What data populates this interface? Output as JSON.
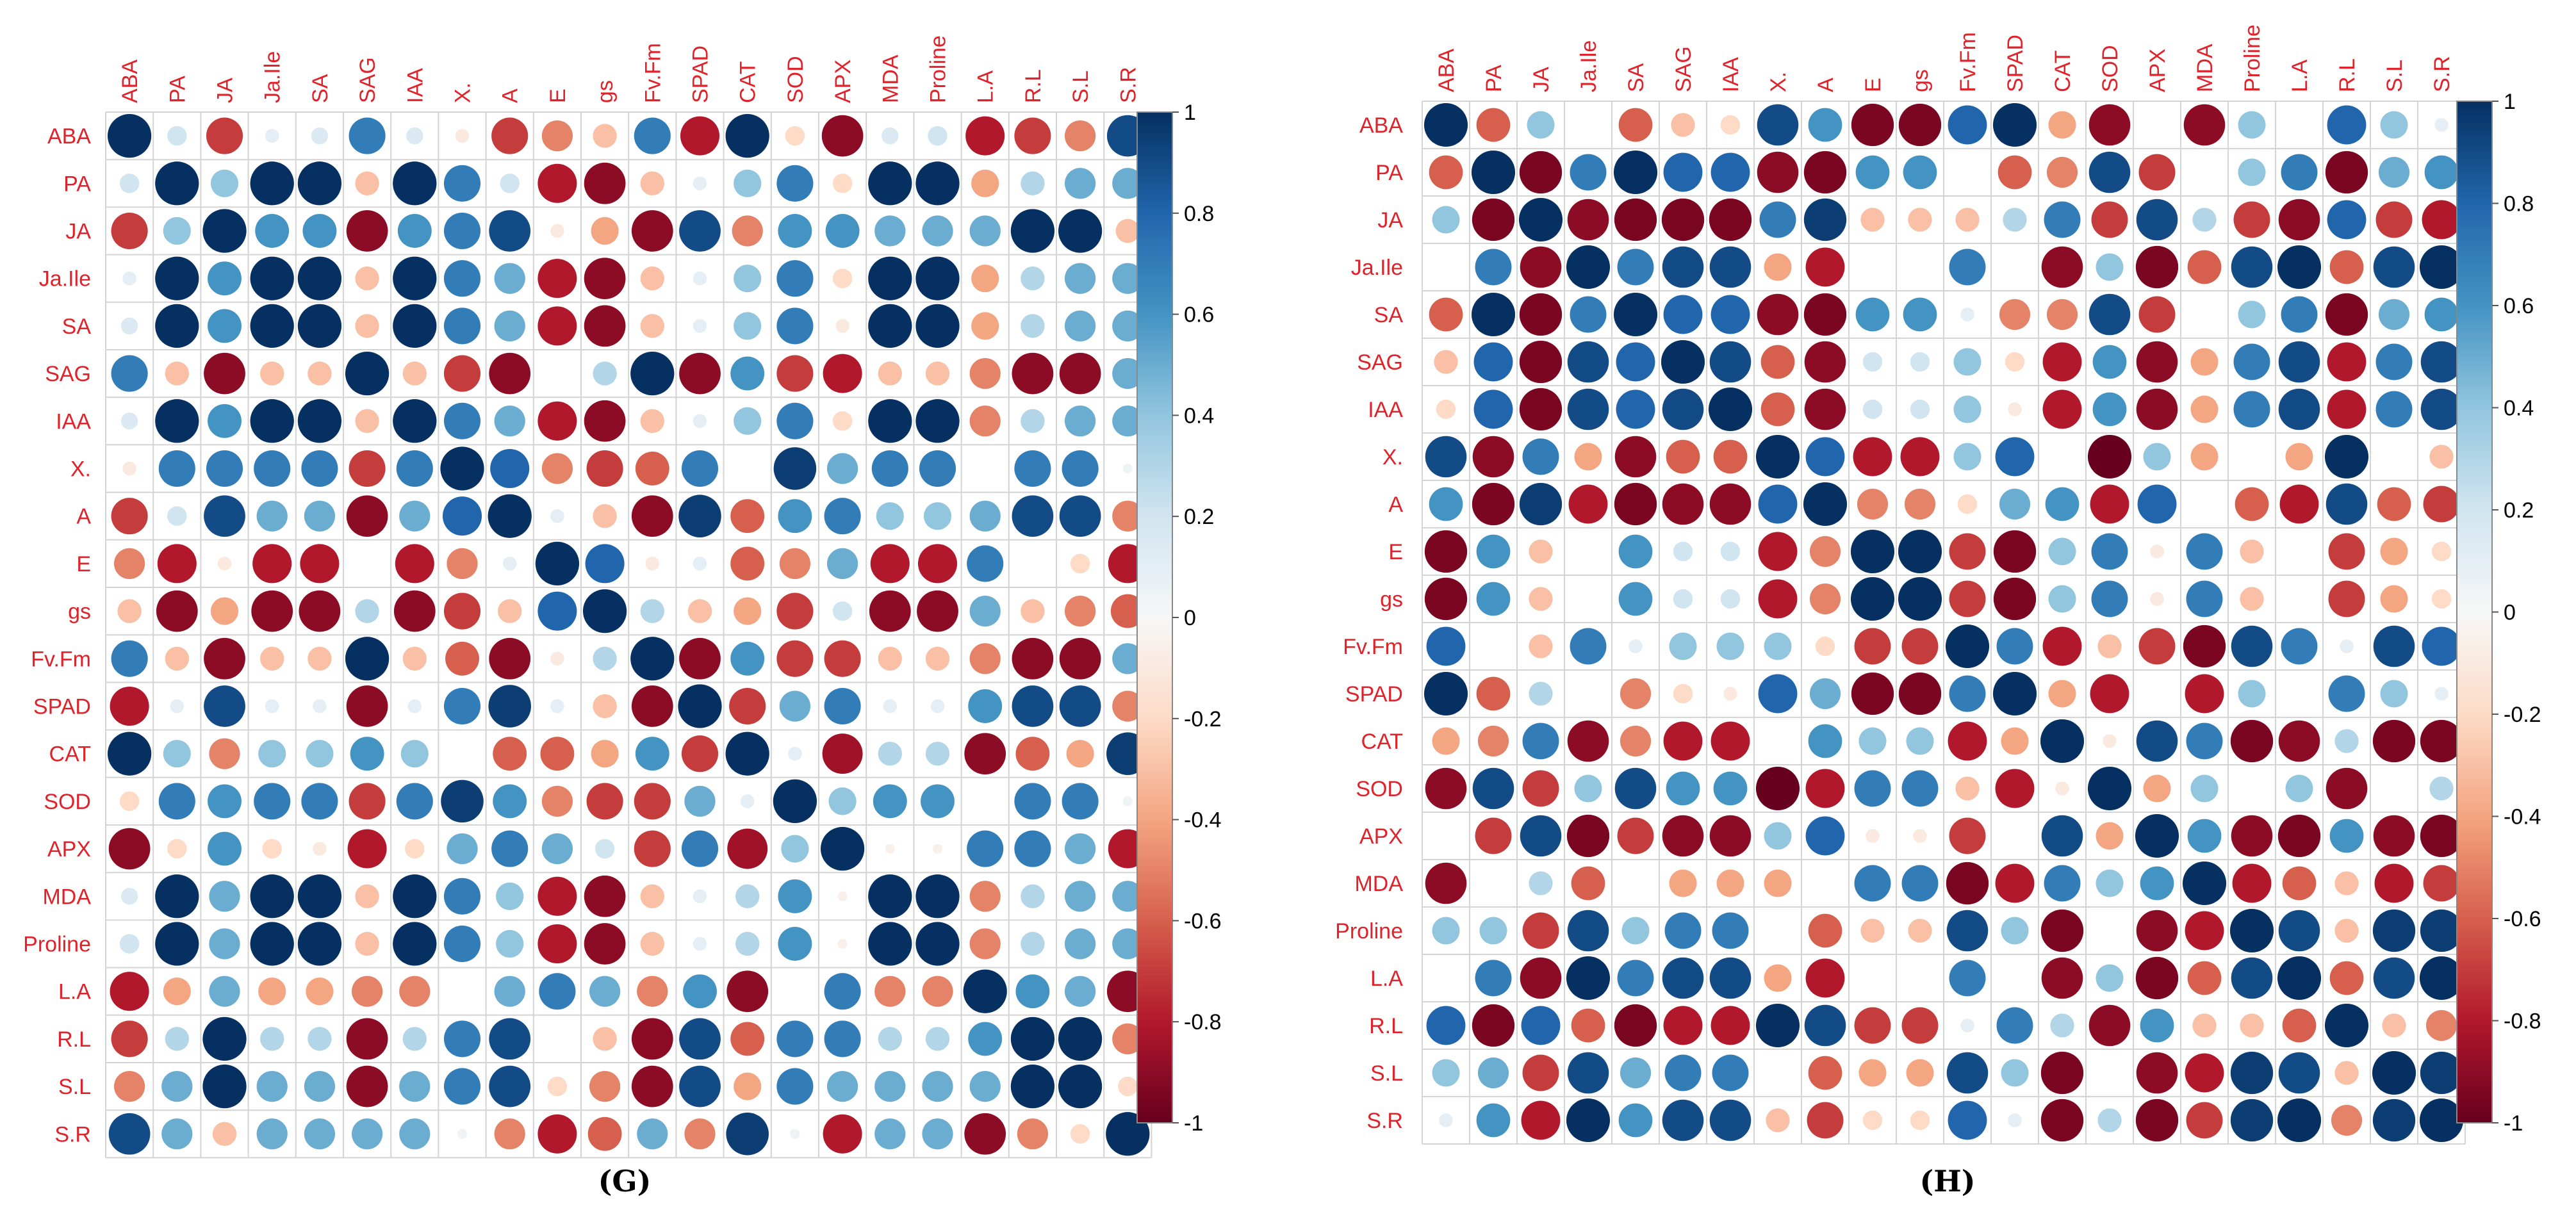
{
  "chart_data": [
    {
      "type": "heatmap",
      "panel_label": "(G)",
      "variables": [
        "ABA",
        "PA",
        "JA",
        "Ja.Ile",
        "SA",
        "SAG",
        "IAA",
        "X.",
        "A",
        "E",
        "gs",
        "Fv.Fm",
        "SPAD",
        "CAT",
        "SOD",
        "APX",
        "MDA",
        "Proline",
        "L.A",
        "R.L",
        "S.L",
        "S.R"
      ],
      "color_range": [
        -1,
        1
      ],
      "colorbar_ticks": [
        "1",
        "0.8",
        "0.6",
        "0.4",
        "0.2",
        "0",
        "-0.2",
        "-0.4",
        "-0.6",
        "-0.8",
        "-1"
      ],
      "matrix": [
        [
          1,
          0.2,
          -0.7,
          0.1,
          0.15,
          0.7,
          0.15,
          -0.1,
          -0.7,
          -0.5,
          -0.3,
          0.7,
          -0.8,
          1,
          -0.2,
          -0.9,
          0.15,
          0.2,
          -0.8,
          -0.7,
          -0.5,
          0.9
        ],
        [
          0.2,
          1,
          0.4,
          1,
          1,
          -0.3,
          1,
          0.7,
          0.2,
          -0.8,
          -0.9,
          -0.3,
          0.1,
          0.4,
          0.7,
          -0.2,
          1,
          1,
          -0.4,
          0.3,
          0.5,
          0.5
        ],
        [
          -0.7,
          0.4,
          1,
          0.6,
          0.6,
          -0.9,
          0.6,
          0.7,
          0.9,
          -0.1,
          -0.4,
          -0.9,
          0.9,
          -0.5,
          0.6,
          0.6,
          0.5,
          0.5,
          0.5,
          1,
          1,
          -0.3
        ],
        [
          0.1,
          1,
          0.6,
          1,
          1,
          -0.3,
          1,
          0.7,
          0.5,
          -0.8,
          -0.9,
          -0.3,
          0.1,
          0.4,
          0.7,
          -0.2,
          1,
          1,
          -0.4,
          0.3,
          0.5,
          0.5
        ],
        [
          0.15,
          1,
          0.6,
          1,
          1,
          -0.3,
          1,
          0.7,
          0.5,
          -0.8,
          -0.9,
          -0.3,
          0.1,
          0.4,
          0.7,
          -0.1,
          1,
          1,
          -0.4,
          0.3,
          0.5,
          0.5
        ],
        [
          0.7,
          -0.3,
          -0.9,
          -0.3,
          -0.3,
          1,
          -0.3,
          -0.7,
          -0.9,
          0,
          0.3,
          1,
          -0.9,
          0.6,
          -0.7,
          -0.8,
          -0.3,
          -0.3,
          -0.5,
          -0.9,
          -0.9,
          0.5
        ],
        [
          0.15,
          1,
          0.6,
          1,
          1,
          -0.3,
          1,
          0.7,
          0.5,
          -0.8,
          -0.9,
          -0.3,
          0.1,
          0.4,
          0.7,
          -0.2,
          1,
          1,
          -0.5,
          0.3,
          0.5,
          0.5
        ],
        [
          -0.1,
          0.7,
          0.7,
          0.7,
          0.7,
          -0.7,
          0.7,
          1,
          0.8,
          -0.5,
          -0.7,
          -0.6,
          0.7,
          0,
          0.95,
          0.5,
          0.7,
          0.7,
          0,
          0.7,
          0.7,
          0.05
        ],
        [
          -0.7,
          0.2,
          0.9,
          0.5,
          0.5,
          -0.9,
          0.5,
          0.8,
          1,
          0.1,
          -0.3,
          -0.9,
          0.95,
          -0.6,
          0.6,
          0.7,
          0.4,
          0.4,
          0.5,
          0.9,
          0.9,
          -0.5
        ],
        [
          -0.5,
          -0.8,
          -0.1,
          -0.8,
          -0.8,
          0,
          -0.8,
          -0.5,
          0.1,
          1,
          0.8,
          -0.1,
          0.1,
          -0.6,
          -0.5,
          0.5,
          -0.8,
          -0.8,
          0.7,
          0,
          -0.2,
          -0.8
        ],
        [
          -0.3,
          -0.9,
          -0.4,
          -0.9,
          -0.9,
          0.3,
          -0.9,
          -0.7,
          -0.3,
          0.8,
          1,
          0.3,
          -0.3,
          -0.4,
          -0.7,
          0.2,
          -0.9,
          -0.9,
          0.5,
          -0.3,
          -0.5,
          -0.6
        ],
        [
          0.7,
          -0.3,
          -0.9,
          -0.3,
          -0.3,
          1,
          -0.3,
          -0.6,
          -0.9,
          -0.1,
          0.3,
          1,
          -0.9,
          0.6,
          -0.7,
          -0.7,
          -0.3,
          -0.3,
          -0.5,
          -0.9,
          -0.9,
          0.5
        ],
        [
          -0.8,
          0.1,
          0.9,
          0.1,
          0.1,
          -0.9,
          0.1,
          0.7,
          0.95,
          0.1,
          -0.3,
          -0.9,
          1,
          -0.7,
          0.5,
          0.7,
          0.1,
          0.1,
          0.6,
          0.9,
          0.9,
          -0.5
        ],
        [
          1,
          0.4,
          -0.5,
          0.4,
          0.4,
          0.6,
          0.4,
          0,
          -0.6,
          -0.6,
          -0.4,
          0.6,
          -0.7,
          1,
          0.1,
          -0.85,
          0.3,
          0.3,
          -0.9,
          -0.6,
          -0.4,
          0.95
        ],
        [
          -0.2,
          0.7,
          0.6,
          0.7,
          0.7,
          -0.7,
          0.7,
          0.95,
          0.6,
          -0.5,
          -0.7,
          -0.7,
          0.5,
          0.1,
          1,
          0.4,
          0.6,
          0.6,
          0,
          0.7,
          0.7,
          0.05
        ],
        [
          -0.9,
          -0.2,
          0.6,
          -0.2,
          -0.1,
          -0.8,
          -0.2,
          0.5,
          0.7,
          0.5,
          0.2,
          -0.7,
          0.7,
          -0.85,
          0.4,
          1,
          -0.05,
          -0.05,
          0.7,
          0.7,
          0.5,
          -0.8
        ],
        [
          0.15,
          1,
          0.5,
          1,
          1,
          -0.3,
          1,
          0.7,
          0.4,
          -0.8,
          -0.9,
          -0.3,
          0.1,
          0.3,
          0.6,
          -0.05,
          1,
          1,
          -0.5,
          0.3,
          0.5,
          0.5
        ],
        [
          0.2,
          1,
          0.5,
          1,
          1,
          -0.3,
          1,
          0.7,
          0.4,
          -0.8,
          -0.9,
          -0.3,
          0.1,
          0.3,
          0.6,
          -0.05,
          1,
          1,
          -0.5,
          0.3,
          0.5,
          0.5
        ],
        [
          -0.8,
          -0.4,
          0.5,
          -0.4,
          -0.4,
          -0.5,
          -0.5,
          0,
          0.5,
          0.7,
          0.5,
          -0.5,
          0.6,
          -0.9,
          0,
          0.7,
          -0.5,
          -0.5,
          1,
          0.6,
          0.5,
          -0.9
        ],
        [
          -0.7,
          0.3,
          1,
          0.3,
          0.3,
          -0.9,
          0.3,
          0.7,
          0.9,
          0,
          -0.3,
          -0.9,
          0.9,
          -0.6,
          0.7,
          0.7,
          0.3,
          0.3,
          0.6,
          1,
          1,
          -0.5
        ],
        [
          -0.5,
          0.5,
          1,
          0.5,
          0.5,
          -0.9,
          0.5,
          0.7,
          0.9,
          -0.2,
          -0.5,
          -0.9,
          0.9,
          -0.4,
          0.7,
          0.5,
          0.5,
          0.5,
          0.5,
          1,
          1,
          -0.2
        ],
        [
          0.9,
          0.5,
          -0.3,
          0.5,
          0.5,
          0.5,
          0.5,
          0.05,
          -0.5,
          -0.8,
          -0.6,
          0.5,
          -0.5,
          0.95,
          0.05,
          -0.8,
          0.5,
          0.5,
          -0.9,
          -0.5,
          -0.2,
          1
        ]
      ]
    },
    {
      "type": "heatmap",
      "panel_label": "(H)",
      "variables": [
        "ABA",
        "PA",
        "JA",
        "Ja.Ile",
        "SA",
        "SAG",
        "IAA",
        "X.",
        "A",
        "E",
        "gs",
        "Fv.Fm",
        "SPAD",
        "CAT",
        "SOD",
        "APX",
        "MDA",
        "Proline",
        "L.A",
        "R.L",
        "S.L",
        "S.R"
      ],
      "color_range": [
        -1,
        1
      ],
      "colorbar_ticks": [
        "1",
        "0.8",
        "0.6",
        "0.4",
        "0.2",
        "0",
        "-0.2",
        "-0.4",
        "-0.6",
        "-0.8",
        "-1"
      ],
      "matrix": [
        [
          1,
          -0.6,
          0.4,
          0,
          -0.6,
          -0.3,
          -0.2,
          0.9,
          0.6,
          -0.95,
          -0.95,
          0.8,
          1,
          -0.4,
          -0.9,
          0,
          -0.9,
          0.4,
          0,
          0.8,
          0.4,
          0.1
        ],
        [
          -0.6,
          1,
          -0.95,
          0.7,
          1,
          0.8,
          0.8,
          -0.9,
          -0.95,
          0.6,
          0.6,
          0,
          -0.6,
          -0.5,
          0.9,
          -0.7,
          0,
          0.4,
          0.7,
          -0.95,
          0.5,
          0.6
        ],
        [
          0.4,
          -0.95,
          1,
          -0.9,
          -0.95,
          -0.95,
          -0.95,
          0.7,
          0.95,
          -0.3,
          -0.3,
          -0.3,
          0.3,
          0.7,
          -0.7,
          0.9,
          0.3,
          -0.7,
          -0.9,
          0.8,
          -0.7,
          -0.8
        ],
        [
          0,
          0.7,
          -0.9,
          1,
          0.7,
          0.9,
          0.9,
          -0.4,
          -0.8,
          0,
          0,
          0.7,
          0,
          -0.9,
          0.4,
          -0.95,
          -0.6,
          0.9,
          1,
          -0.6,
          0.9,
          1
        ],
        [
          -0.6,
          1,
          -0.95,
          0.7,
          1,
          0.8,
          0.8,
          -0.9,
          -0.95,
          0.6,
          0.6,
          0.1,
          -0.5,
          -0.5,
          0.9,
          -0.7,
          0,
          0.4,
          0.7,
          -0.95,
          0.5,
          0.6
        ],
        [
          -0.3,
          0.8,
          -0.95,
          0.9,
          0.8,
          1,
          0.9,
          -0.6,
          -0.9,
          0.2,
          0.2,
          0.4,
          -0.2,
          -0.8,
          0.6,
          -0.9,
          -0.4,
          0.7,
          0.9,
          -0.8,
          0.7,
          0.9
        ],
        [
          -0.2,
          0.8,
          -0.95,
          0.9,
          0.8,
          0.9,
          1,
          -0.6,
          -0.9,
          0.2,
          0.2,
          0.4,
          -0.1,
          -0.8,
          0.6,
          -0.9,
          -0.4,
          0.7,
          0.9,
          -0.8,
          0.7,
          0.9
        ],
        [
          0.9,
          -0.9,
          0.7,
          -0.4,
          -0.9,
          -0.6,
          -0.6,
          1,
          0.8,
          -0.8,
          -0.8,
          0.4,
          0.8,
          0,
          -1,
          0.4,
          -0.4,
          0,
          -0.4,
          1,
          0,
          -0.3
        ],
        [
          0.6,
          -0.95,
          0.95,
          -0.8,
          -0.95,
          -0.9,
          -0.9,
          0.8,
          1,
          -0.5,
          -0.5,
          -0.2,
          0.5,
          0.6,
          -0.8,
          0.8,
          0,
          -0.6,
          -0.8,
          0.9,
          -0.6,
          -0.7
        ],
        [
          -0.95,
          0.6,
          -0.3,
          0,
          0.6,
          0.2,
          0.2,
          -0.8,
          -0.5,
          1,
          1,
          -0.7,
          -0.95,
          0.4,
          0.7,
          -0.1,
          0.7,
          -0.3,
          0,
          -0.7,
          -0.4,
          -0.2
        ],
        [
          -0.95,
          0.6,
          -0.3,
          0,
          0.6,
          0.2,
          0.2,
          -0.8,
          -0.5,
          1,
          1,
          -0.7,
          -0.95,
          0.4,
          0.7,
          -0.1,
          0.7,
          -0.3,
          0,
          -0.7,
          -0.4,
          -0.2
        ],
        [
          0.8,
          0,
          -0.3,
          0.7,
          0.1,
          0.4,
          0.4,
          0.4,
          -0.2,
          -0.7,
          -0.7,
          1,
          0.7,
          -0.8,
          -0.3,
          -0.7,
          -0.95,
          0.9,
          0.7,
          0.1,
          0.9,
          0.8
        ],
        [
          1,
          -0.6,
          0.3,
          0,
          -0.5,
          -0.2,
          -0.1,
          0.8,
          0.5,
          -0.95,
          -0.95,
          0.7,
          1,
          -0.4,
          -0.8,
          0,
          -0.8,
          0.4,
          0,
          0.7,
          0.4,
          0.1
        ],
        [
          -0.4,
          -0.5,
          0.7,
          -0.9,
          -0.5,
          -0.8,
          -0.8,
          0,
          0.6,
          0.4,
          0.4,
          -0.8,
          -0.4,
          1,
          -0.1,
          0.9,
          0.7,
          -0.95,
          -0.9,
          0.3,
          -0.95,
          -0.95
        ],
        [
          -0.9,
          0.9,
          -0.7,
          0.4,
          0.9,
          0.6,
          0.6,
          -1,
          -0.8,
          0.7,
          0.7,
          -0.3,
          -0.8,
          -0.1,
          1,
          -0.4,
          0.4,
          0,
          0.4,
          -0.9,
          0,
          0.3
        ],
        [
          0,
          -0.7,
          0.9,
          -0.95,
          -0.7,
          -0.9,
          -0.9,
          0.4,
          0.8,
          -0.1,
          -0.1,
          -0.7,
          0,
          0.9,
          -0.4,
          1,
          0.6,
          -0.9,
          -0.95,
          0.6,
          -0.9,
          -0.95
        ],
        [
          -0.9,
          0,
          0.3,
          -0.6,
          0,
          -0.4,
          -0.4,
          -0.4,
          0,
          0.7,
          0.7,
          -0.95,
          -0.8,
          0.7,
          0.4,
          0.6,
          1,
          -0.8,
          -0.6,
          -0.3,
          -0.8,
          -0.7
        ],
        [
          0.4,
          0.4,
          -0.7,
          0.9,
          0.4,
          0.7,
          0.7,
          0,
          -0.6,
          -0.3,
          -0.3,
          0.9,
          0.4,
          -0.95,
          0,
          -0.9,
          -0.8,
          1,
          0.9,
          -0.3,
          0.95,
          0.95
        ],
        [
          0,
          0.7,
          -0.9,
          1,
          0.7,
          0.9,
          0.9,
          -0.4,
          -0.8,
          0,
          0,
          0.7,
          0,
          -0.9,
          0.4,
          -0.95,
          -0.6,
          0.9,
          1,
          -0.6,
          0.9,
          1
        ],
        [
          0.8,
          -0.95,
          0.8,
          -0.6,
          -0.95,
          -0.8,
          -0.8,
          1,
          0.9,
          -0.7,
          -0.7,
          0.1,
          0.7,
          0.3,
          -0.9,
          0.6,
          -0.3,
          -0.3,
          -0.6,
          1,
          -0.3,
          -0.5
        ],
        [
          0.4,
          0.5,
          -0.7,
          0.9,
          0.5,
          0.7,
          0.7,
          0,
          -0.6,
          -0.4,
          -0.4,
          0.9,
          0.4,
          -0.95,
          0,
          -0.9,
          -0.8,
          0.95,
          0.9,
          -0.3,
          1,
          0.95
        ],
        [
          0.1,
          0.6,
          -0.8,
          1,
          0.6,
          0.9,
          0.9,
          -0.3,
          -0.7,
          -0.2,
          -0.2,
          0.8,
          0.1,
          -0.95,
          0.3,
          -0.95,
          -0.7,
          0.95,
          1,
          -0.5,
          0.95,
          1
        ]
      ]
    }
  ]
}
